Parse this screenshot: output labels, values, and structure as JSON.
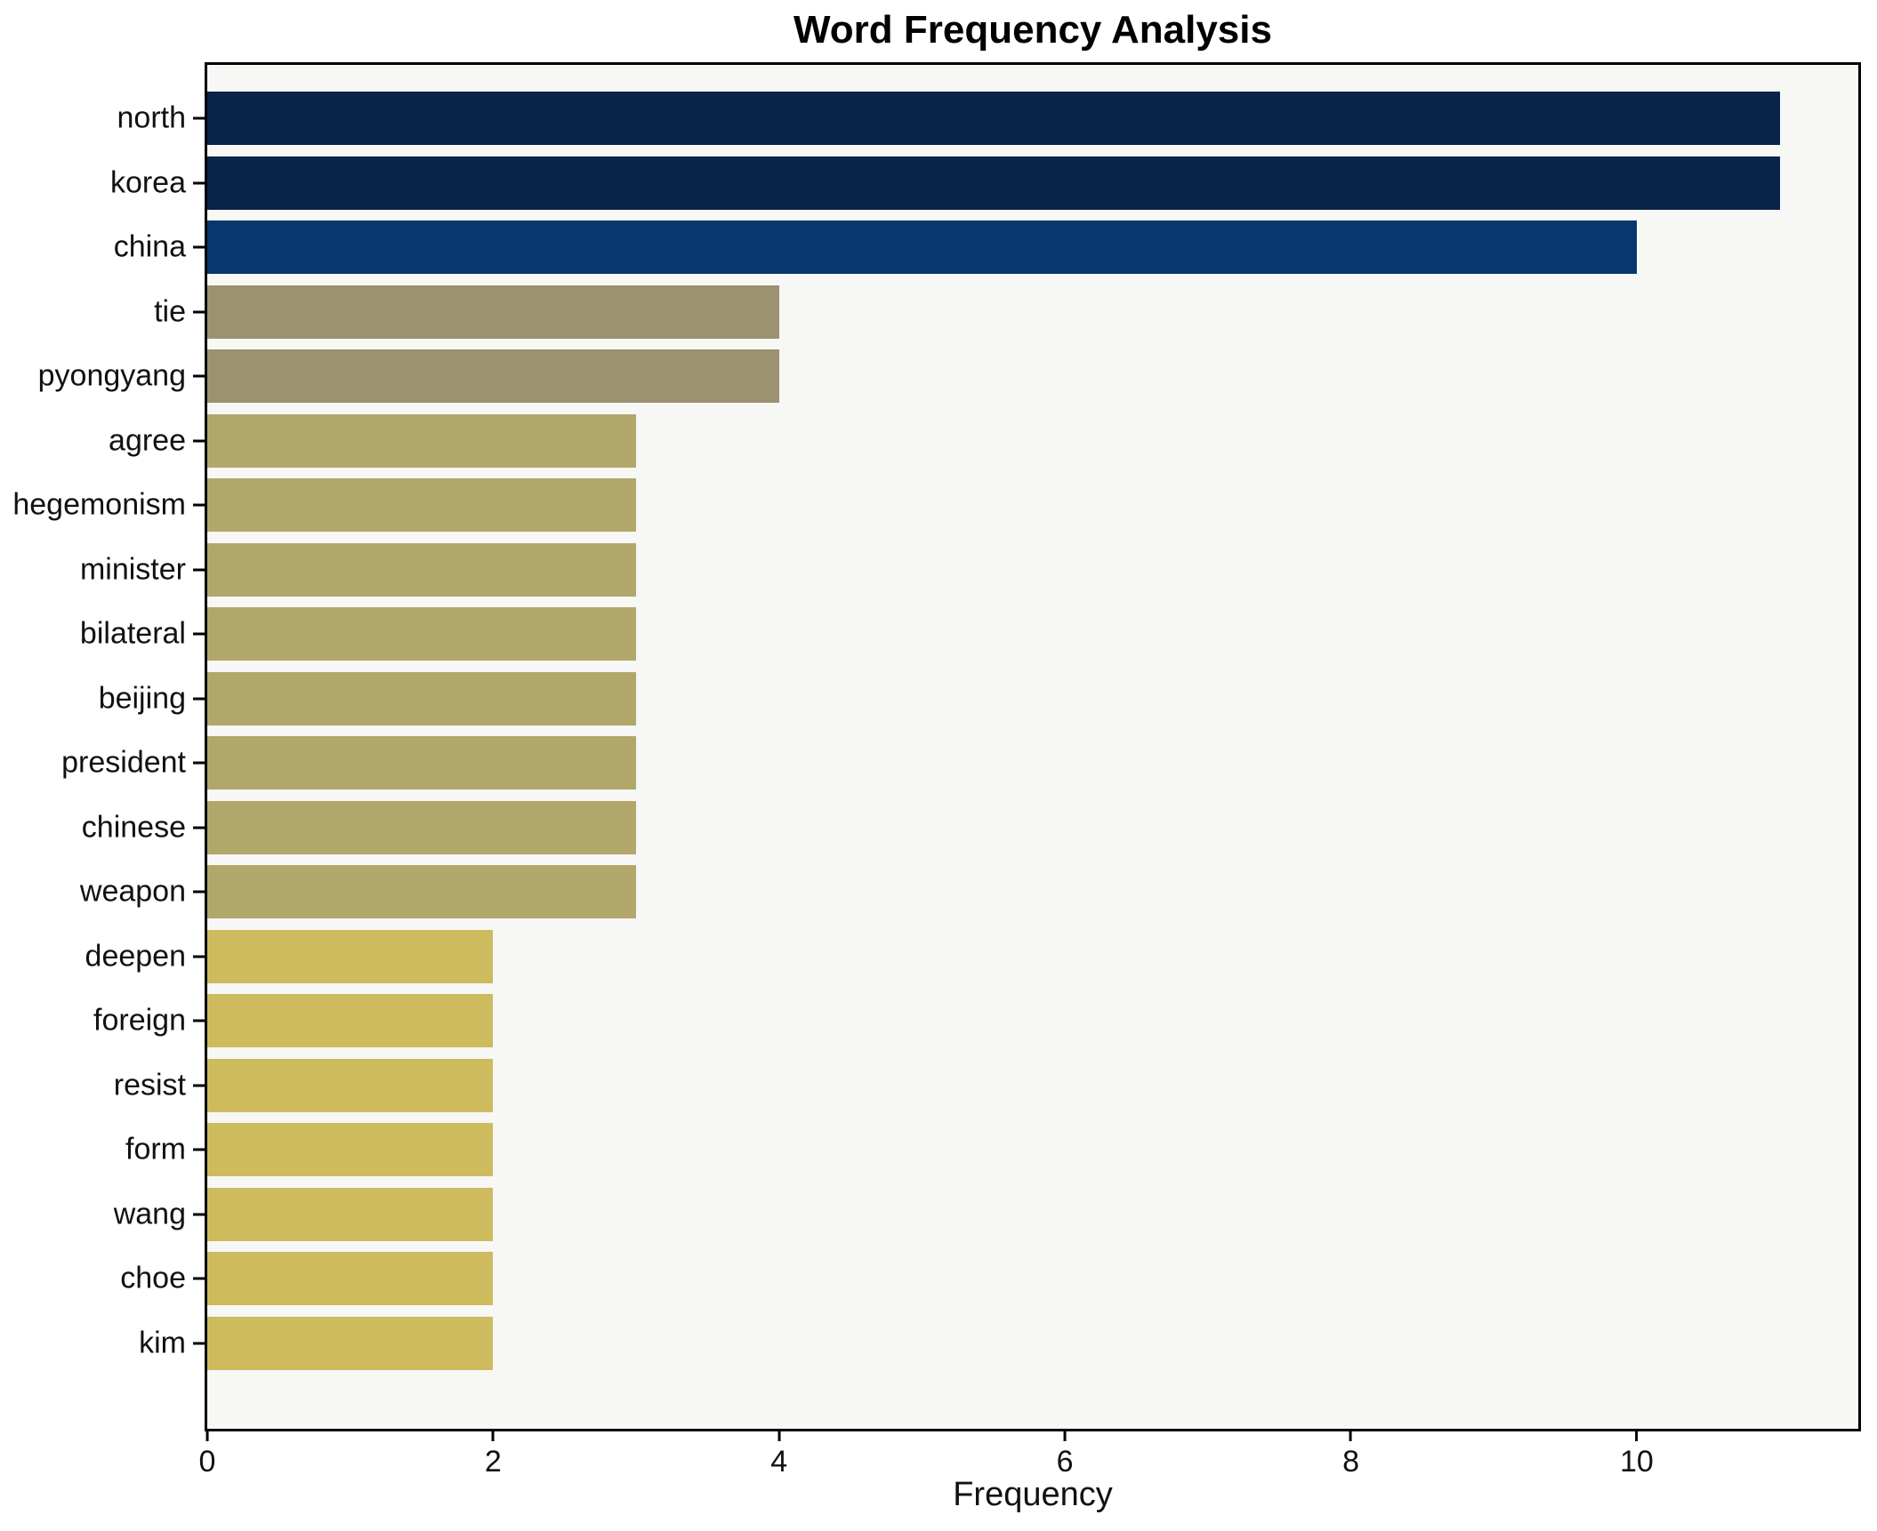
{
  "chart_data": {
    "type": "bar",
    "orientation": "horizontal",
    "title": "Word Frequency Analysis",
    "xlabel": "Frequency",
    "ylabel": "",
    "categories": [
      "north",
      "korea",
      "china",
      "tie",
      "pyongyang",
      "agree",
      "hegemonism",
      "minister",
      "bilateral",
      "beijing",
      "president",
      "chinese",
      "weapon",
      "deepen",
      "foreign",
      "resist",
      "form",
      "wang",
      "choe",
      "kim"
    ],
    "values": [
      11,
      11,
      10,
      4,
      4,
      3,
      3,
      3,
      3,
      3,
      3,
      3,
      3,
      2,
      2,
      2,
      2,
      2,
      2,
      2
    ],
    "bar_colors": [
      "#092349",
      "#092349",
      "#083770",
      "#9c9271",
      "#9c9271",
      "#b2a76b",
      "#b2a76b",
      "#b2a76b",
      "#b2a76b",
      "#b2a76b",
      "#b2a76b",
      "#b2a76b",
      "#b2a76b",
      "#cdbb5e",
      "#cdbb5e",
      "#cdbb5e",
      "#cdbb5e",
      "#cdbb5e",
      "#cdbb5e",
      "#cdbb5e"
    ],
    "xlim": [
      0,
      11.55
    ],
    "xticks": [
      0,
      2,
      4,
      6,
      8,
      10
    ],
    "grid": false,
    "legend_position": "none",
    "plot_background": "#f7f7f6",
    "figure_background": "#ffffff",
    "axis_color": "#000000"
  }
}
